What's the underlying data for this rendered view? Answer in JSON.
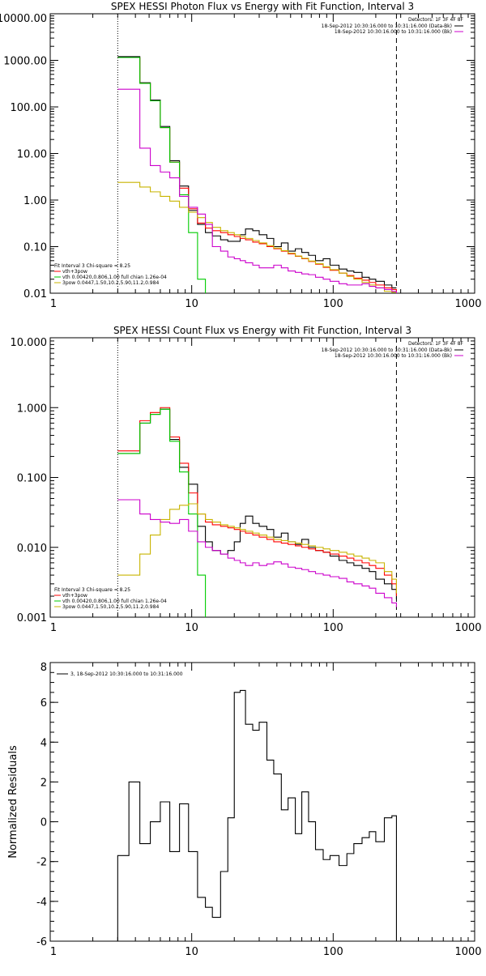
{
  "chart_data": [
    {
      "type": "line",
      "title": "SPEX HESSI Photon Flux vs Energy with Fit Function, Interval 3",
      "xscale": "log",
      "yscale": "log",
      "xlim": [
        1,
        1000
      ],
      "ylim": [
        0.01,
        10000
      ],
      "x_ticks": [
        1,
        10,
        100,
        1000
      ],
      "x_tick_labels": [
        "1",
        "10",
        "100",
        "1000"
      ],
      "y_ticks": [
        0.01,
        0.1,
        1,
        10,
        100,
        1000,
        10000
      ],
      "y_tick_labels": [
        "0.01",
        "0.10",
        "1.00",
        "10.00",
        "100.00",
        "1000.00",
        "10000.00"
      ],
      "vlines": [
        {
          "x": 3,
          "style": "dotted"
        },
        {
          "x": 280,
          "style": "dashed"
        }
      ],
      "legend_top": {
        "header": "Detectors: 1F 3F 4F 8F",
        "entries": [
          {
            "label": "18-Sep-2012 10:30:16.000 to 10:31:16.000 (Data-Bk)",
            "color": "#000000"
          },
          {
            "label": "18-Sep-2012 10:30:16.000 to 10:31:16.000 (Bk)",
            "color": "#cc00cc"
          }
        ]
      },
      "legend_bottom": {
        "header": "Fit Interval 3   Chi-square = 8.25",
        "entries": [
          {
            "label": "vth+3pow",
            "color": "#ff0000"
          },
          {
            "label": "vth 0.00420,0.806,1.00  full chian 1.26e-04",
            "color": "#00cc00"
          },
          {
            "label": "3pow 0.0447,1.50,10.2,5.90,11.2,0.984",
            "color": "#c8b400"
          }
        ]
      },
      "series": [
        {
          "color": "#000000",
          "x": [
            3,
            3.6,
            4.3,
            5.1,
            6,
            7,
            8.2,
            9.5,
            11,
            12.5,
            14,
            16,
            18,
            20,
            22,
            24,
            27,
            30,
            34,
            38,
            43,
            48,
            54,
            60,
            67,
            75,
            85,
            95,
            110,
            125,
            140,
            160,
            180,
            200,
            230,
            260,
            280
          ],
          "y": [
            1200,
            1200,
            330,
            140,
            38,
            7,
            2,
            0.6,
            0.3,
            0.2,
            0.17,
            0.14,
            0.13,
            0.13,
            0.18,
            0.24,
            0.22,
            0.18,
            0.15,
            0.1,
            0.12,
            0.08,
            0.09,
            0.075,
            0.065,
            0.05,
            0.055,
            0.04,
            0.033,
            0.03,
            0.028,
            0.022,
            0.02,
            0.018,
            0.015,
            0.013,
            0.013
          ]
        },
        {
          "color": "#ff0000",
          "x": [
            3,
            3.6,
            4.3,
            5.1,
            6,
            7,
            8.2,
            9.5,
            11,
            12.5,
            14,
            16,
            18,
            20,
            22,
            24,
            27,
            30,
            34,
            38,
            43,
            48,
            54,
            60,
            67,
            75,
            85,
            95,
            110,
            125,
            140,
            160,
            180,
            200,
            230,
            260,
            280
          ],
          "y": [
            1150,
            1150,
            320,
            135,
            36,
            6.5,
            1.8,
            0.65,
            0.32,
            0.25,
            0.22,
            0.2,
            0.18,
            0.165,
            0.15,
            0.14,
            0.125,
            0.115,
            0.1,
            0.09,
            0.08,
            0.07,
            0.062,
            0.055,
            0.048,
            0.042,
            0.036,
            0.031,
            0.027,
            0.024,
            0.021,
            0.019,
            0.017,
            0.015,
            0.013,
            0.012,
            0.011
          ]
        },
        {
          "color": "#00cc00",
          "x": [
            3,
            3.6,
            4.3,
            5.1,
            6,
            7,
            8.2,
            9.5,
            11,
            12.5
          ],
          "y": [
            1150,
            1150,
            320,
            135,
            36,
            6.5,
            1.3,
            0.2,
            0.02,
            0.01
          ]
        },
        {
          "color": "#c8b400",
          "x": [
            3,
            3.6,
            4.3,
            5.1,
            6,
            7,
            8.2,
            9.5,
            11,
            12.5,
            14,
            16,
            18,
            20,
            22,
            24,
            27,
            30,
            34,
            38,
            43,
            48,
            54,
            60,
            67,
            75,
            85,
            95,
            110,
            125,
            140,
            160,
            180,
            200,
            230,
            260,
            280
          ],
          "y": [
            2.4,
            2.4,
            1.9,
            1.5,
            1.2,
            0.95,
            0.7,
            0.55,
            0.42,
            0.33,
            0.26,
            0.22,
            0.2,
            0.18,
            0.165,
            0.15,
            0.135,
            0.12,
            0.105,
            0.093,
            0.082,
            0.072,
            0.063,
            0.056,
            0.049,
            0.043,
            0.037,
            0.032,
            0.027,
            0.023,
            0.02,
            0.017,
            0.015,
            0.013,
            0.011,
            0.0105,
            0.01
          ]
        },
        {
          "color": "#cc00cc",
          "x": [
            3,
            3.6,
            4.3,
            5.1,
            6,
            7,
            8.2,
            9.5,
            11,
            12.5,
            14,
            16,
            18,
            20,
            22,
            24,
            27,
            30,
            34,
            38,
            43,
            48,
            54,
            60,
            67,
            75,
            85,
            95,
            110,
            125,
            140,
            160,
            180,
            200,
            230,
            260,
            280
          ],
          "y": [
            240,
            240,
            13,
            5.5,
            4,
            3,
            1.2,
            0.7,
            0.5,
            0.3,
            0.1,
            0.08,
            0.06,
            0.055,
            0.05,
            0.045,
            0.04,
            0.035,
            0.035,
            0.04,
            0.035,
            0.03,
            0.028,
            0.026,
            0.025,
            0.022,
            0.02,
            0.018,
            0.016,
            0.015,
            0.015,
            0.016,
            0.014,
            0.013,
            0.012,
            0.011,
            0.01
          ]
        }
      ]
    },
    {
      "type": "line",
      "title": "SPEX HESSI Count Flux vs Energy with Fit Function, Interval 3",
      "xscale": "log",
      "yscale": "log",
      "xlim": [
        1,
        1000
      ],
      "ylim": [
        0.001,
        10
      ],
      "x_ticks": [
        1,
        10,
        100,
        1000
      ],
      "x_tick_labels": [
        "1",
        "10",
        "100",
        "1000"
      ],
      "y_ticks": [
        0.001,
        0.01,
        0.1,
        1,
        10
      ],
      "y_tick_labels": [
        "0.001",
        "0.010",
        "0.100",
        "1.000",
        "10.000"
      ],
      "vlines": [
        {
          "x": 3,
          "style": "dotted"
        },
        {
          "x": 280,
          "style": "dashed"
        }
      ],
      "legend_top": {
        "header": "Detectors: 1F 3F 4F 8F",
        "entries": [
          {
            "label": "18-Sep-2012 10:30:16.000 to 10:31:16.000 (Data-Bk)",
            "color": "#000000"
          },
          {
            "label": "18-Sep-2012 10:30:16.000 to 10:31:16.000 (Bk)",
            "color": "#cc00cc"
          }
        ]
      },
      "legend_bottom": {
        "header": "Fit Interval 3   Chi-square = 8.25",
        "entries": [
          {
            "label": "vth+3pow",
            "color": "#ff0000"
          },
          {
            "label": "vth 0.00420,0.806,1.00  full chian 1.26e-04",
            "color": "#00cc00"
          },
          {
            "label": "3pow 0.0447,1.50,10.2,5.90,11.2,0.984",
            "color": "#c8b400"
          }
        ]
      },
      "series": [
        {
          "color": "#000000",
          "x": [
            3,
            3.6,
            4.3,
            5.1,
            6,
            7,
            8.2,
            9.5,
            11,
            12.5,
            14,
            16,
            18,
            20,
            22,
            24,
            27,
            30,
            34,
            38,
            43,
            48,
            54,
            60,
            67,
            75,
            85,
            95,
            110,
            125,
            140,
            160,
            180,
            200,
            230,
            260,
            280
          ],
          "y": [
            0.22,
            0.22,
            0.6,
            0.8,
            0.95,
            0.35,
            0.14,
            0.08,
            0.02,
            0.012,
            0.009,
            0.008,
            0.009,
            0.012,
            0.022,
            0.028,
            0.022,
            0.02,
            0.018,
            0.014,
            0.016,
            0.012,
            0.011,
            0.013,
            0.01,
            0.009,
            0.0085,
            0.0075,
            0.0065,
            0.006,
            0.0055,
            0.005,
            0.0045,
            0.0035,
            0.003,
            0.0025,
            0.0018
          ]
        },
        {
          "color": "#ff0000",
          "x": [
            3,
            3.6,
            4.3,
            5.1,
            6,
            7,
            8.2,
            9.5,
            11,
            12.5,
            14,
            16,
            18,
            20,
            22,
            24,
            27,
            30,
            34,
            38,
            43,
            48,
            54,
            60,
            67,
            75,
            85,
            95,
            110,
            125,
            140,
            160,
            180,
            200,
            230,
            260,
            280
          ],
          "y": [
            0.24,
            0.24,
            0.65,
            0.85,
            1.0,
            0.38,
            0.16,
            0.06,
            0.03,
            0.023,
            0.021,
            0.02,
            0.019,
            0.018,
            0.017,
            0.016,
            0.015,
            0.014,
            0.013,
            0.012,
            0.0115,
            0.011,
            0.0105,
            0.01,
            0.0095,
            0.009,
            0.0085,
            0.008,
            0.0075,
            0.007,
            0.0065,
            0.006,
            0.0055,
            0.005,
            0.004,
            0.003,
            0.002
          ]
        },
        {
          "color": "#00cc00",
          "x": [
            3,
            3.6,
            4.3,
            5.1,
            6,
            7,
            8.2,
            9.5,
            11,
            12.5
          ],
          "y": [
            0.22,
            0.22,
            0.6,
            0.8,
            0.95,
            0.33,
            0.12,
            0.03,
            0.004,
            0.001
          ]
        },
        {
          "color": "#c8b400",
          "x": [
            3,
            3.6,
            4.3,
            5.1,
            6,
            7,
            8.2,
            9.5,
            11,
            12.5,
            14,
            16,
            18,
            20,
            22,
            24,
            27,
            30,
            34,
            38,
            43,
            48,
            54,
            60,
            67,
            75,
            85,
            95,
            110,
            125,
            140,
            160,
            180,
            200,
            230,
            260,
            280
          ],
          "y": [
            0.004,
            0.004,
            0.008,
            0.015,
            0.025,
            0.035,
            0.04,
            0.042,
            0.03,
            0.025,
            0.023,
            0.021,
            0.02,
            0.019,
            0.018,
            0.017,
            0.016,
            0.015,
            0.014,
            0.013,
            0.0125,
            0.012,
            0.0115,
            0.011,
            0.0105,
            0.01,
            0.0095,
            0.009,
            0.0085,
            0.008,
            0.0075,
            0.007,
            0.0065,
            0.006,
            0.0045,
            0.0035,
            0.0022
          ]
        },
        {
          "color": "#cc00cc",
          "x": [
            3,
            3.6,
            4.3,
            5.1,
            6,
            7,
            8.2,
            9.5,
            11,
            12.5,
            14,
            16,
            18,
            20,
            22,
            24,
            27,
            30,
            34,
            38,
            43,
            48,
            54,
            60,
            67,
            75,
            85,
            95,
            110,
            125,
            140,
            160,
            180,
            200,
            230,
            260,
            280
          ],
          "y": [
            0.048,
            0.048,
            0.03,
            0.025,
            0.023,
            0.022,
            0.025,
            0.017,
            0.012,
            0.01,
            0.009,
            0.008,
            0.007,
            0.0065,
            0.006,
            0.0055,
            0.006,
            0.0055,
            0.0058,
            0.0062,
            0.0058,
            0.0052,
            0.005,
            0.0048,
            0.0045,
            0.0042,
            0.004,
            0.0038,
            0.0036,
            0.0032,
            0.003,
            0.0028,
            0.0026,
            0.0022,
            0.0019,
            0.0016,
            0.0014
          ]
        }
      ]
    },
    {
      "type": "line",
      "title": "",
      "ylabel": "Normalized Residuals",
      "xscale": "log",
      "yscale": "linear",
      "xlim": [
        1,
        1000
      ],
      "ylim": [
        -6,
        8
      ],
      "x_ticks": [
        1,
        10,
        100,
        1000
      ],
      "x_tick_labels": [
        "1",
        "10",
        "100",
        "1000"
      ],
      "y_ticks": [
        -6,
        -4,
        -2,
        0,
        2,
        4,
        6,
        8
      ],
      "y_tick_labels": [
        "-6",
        "-4",
        "-2",
        "0",
        "2",
        "4",
        "6",
        "8"
      ],
      "legend_top_left": {
        "entries": [
          {
            "label": "3, 18-Sep-2012 10:30:16.000 to 10:31:16.000",
            "color": "#000000"
          }
        ]
      },
      "series": [
        {
          "color": "#000000",
          "edges": [
            3,
            3.6,
            4.3,
            5.1,
            6,
            7,
            8.2,
            9.5,
            11,
            12.5,
            14,
            16,
            18,
            20,
            22,
            24,
            27,
            30,
            34,
            38,
            43,
            48,
            54,
            60,
            67,
            75,
            85,
            95,
            110,
            125,
            140,
            160,
            180,
            200,
            230,
            260,
            280
          ],
          "values": [
            -1.7,
            2.0,
            -1.1,
            0.0,
            1.0,
            -1.5,
            0.9,
            -1.5,
            -3.8,
            -4.3,
            -4.8,
            -2.5,
            0.2,
            6.5,
            6.6,
            4.9,
            4.6,
            5.0,
            3.1,
            2.4,
            0.6,
            1.2,
            -0.6,
            1.5,
            0.0,
            -1.4,
            -1.9,
            -1.7,
            -2.2,
            -1.6,
            -1.1,
            -0.8,
            -0.5,
            -1.0,
            0.2,
            0.3
          ]
        }
      ]
    }
  ]
}
